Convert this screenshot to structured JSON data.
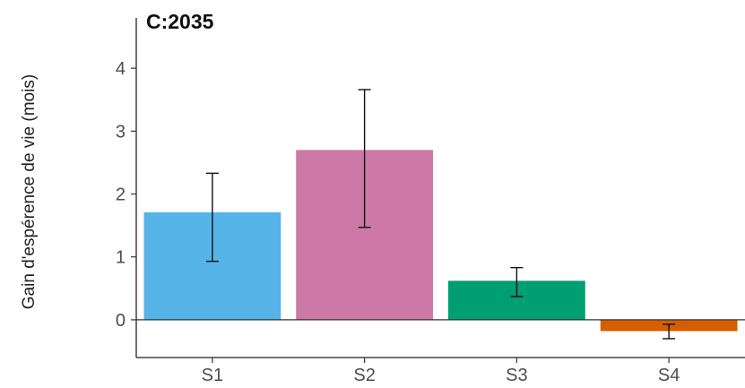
{
  "chart_data": {
    "type": "bar",
    "title": "C:2035",
    "xlabel": "",
    "ylabel": "Gain d'espérence de vie (mois)",
    "categories": [
      "S1",
      "S2",
      "S3",
      "S4"
    ],
    "values": [
      1.71,
      2.7,
      0.62,
      -0.18
    ],
    "error_low": [
      0.93,
      1.47,
      0.37,
      -0.3
    ],
    "error_high": [
      2.33,
      3.66,
      0.83,
      -0.07
    ],
    "colors": [
      "#56B4E9",
      "#CC79A7",
      "#009E73",
      "#D55E00"
    ],
    "ylim": [
      -0.6,
      4.8
    ],
    "yticks": [
      0,
      1,
      2,
      3,
      4
    ],
    "grid": false,
    "zero_line": true
  }
}
